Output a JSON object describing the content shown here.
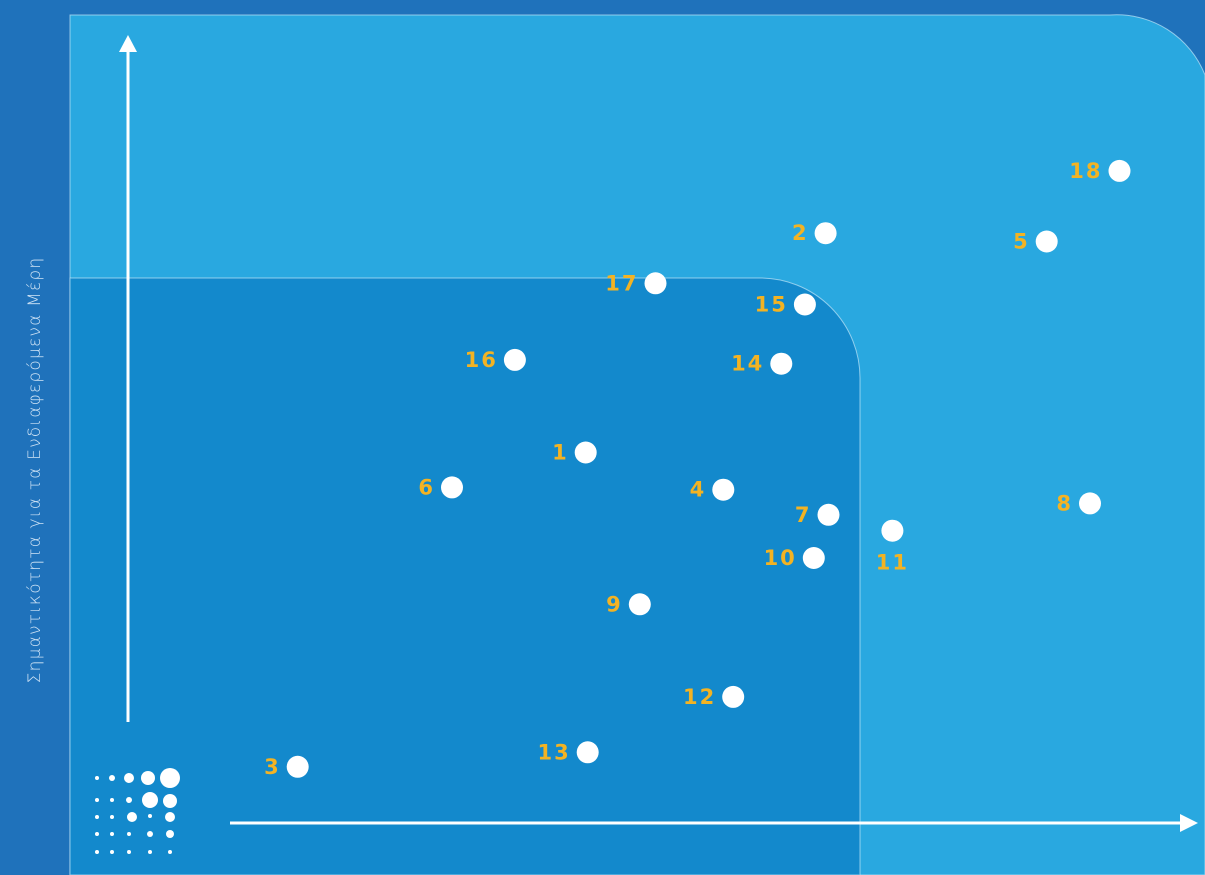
{
  "chart_data": {
    "type": "scatter",
    "title": "",
    "xlabel": "",
    "ylabel": "Σημαντικότητα για τα Ενδιαφερόμενα Μέρη",
    "xlim": [
      0,
      100
    ],
    "ylim": [
      0,
      100
    ],
    "grid": false,
    "legend": "none",
    "points": [
      {
        "label": "1",
        "x": 48.7,
        "y": 60.8
      },
      {
        "label": "2",
        "x": 73.1,
        "y": 89.7
      },
      {
        "label": "3",
        "x": 19.4,
        "y": 19.4
      },
      {
        "label": "4",
        "x": 62.7,
        "y": 55.9
      },
      {
        "label": "5",
        "x": 95.6,
        "y": 88.6
      },
      {
        "label": "6",
        "x": 35.1,
        "y": 56.2
      },
      {
        "label": "7",
        "x": 73.4,
        "y": 52.6
      },
      {
        "label": "8",
        "x": 100.0,
        "y": 54.1
      },
      {
        "label": "9",
        "x": 54.2,
        "y": 40.8
      },
      {
        "label": "10",
        "x": 71.9,
        "y": 46.9
      },
      {
        "label": "11",
        "x": 79.9,
        "y": 50.5
      },
      {
        "label": "12",
        "x": 63.7,
        "y": 28.6
      },
      {
        "label": "13",
        "x": 48.9,
        "y": 21.3
      },
      {
        "label": "14",
        "x": 68.6,
        "y": 72.5
      },
      {
        "label": "15",
        "x": 71.0,
        "y": 80.3
      },
      {
        "label": "16",
        "x": 41.5,
        "y": 73.0
      },
      {
        "label": "17",
        "x": 55.8,
        "y": 83.1
      },
      {
        "label": "18",
        "x": 103.0,
        "y": 97.9
      }
    ]
  },
  "colors": {
    "background": "#1f72bb",
    "outer_zone": "#29a8e0",
    "inner_zone": "#1389cc",
    "point": "#ffffff",
    "label": "#f3b323",
    "axis": "#ffffff"
  },
  "icons": {
    "logo": "dot-grid-logo-icon",
    "y_arrow": "arrow-up-icon",
    "x_arrow": "arrow-right-icon"
  }
}
